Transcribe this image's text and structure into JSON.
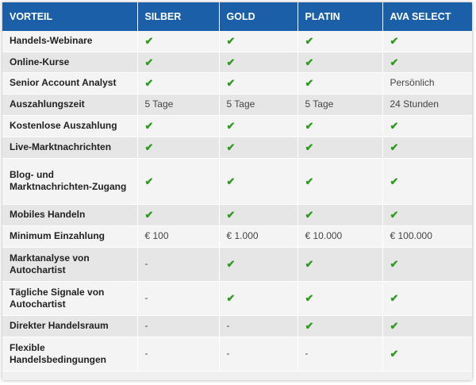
{
  "table": {
    "headers": [
      "VORTEIL",
      "SILBER",
      "GOLD",
      "PLATIN",
      "AVA SELECT"
    ],
    "rows": [
      {
        "label": "Handels-Webinare",
        "cells": [
          "✔",
          "✔",
          "✔",
          "✔"
        ]
      },
      {
        "label": "Online-Kurse",
        "cells": [
          "✔",
          "✔",
          "✔",
          "✔"
        ]
      },
      {
        "label": "Senior Account Analyst",
        "cells": [
          "✔",
          "✔",
          "✔",
          "Persönlich"
        ]
      },
      {
        "label": "Auszahlungszeit",
        "cells": [
          "5 Tage",
          "5 Tage",
          "5 Tage",
          "24 Stunden"
        ]
      },
      {
        "label": "Kostenlose Auszahlung",
        "cells": [
          "✔",
          "✔",
          "✔",
          "✔"
        ]
      },
      {
        "label": "Live-Marktnachrichten",
        "cells": [
          "✔",
          "✔",
          "✔",
          "✔"
        ]
      },
      {
        "label": "Blog- und Marktnachrichten-Zugang",
        "cells": [
          "✔",
          "✔",
          "✔",
          "✔"
        ]
      },
      {
        "label": "Mobiles Handeln",
        "cells": [
          "✔",
          "✔",
          "✔",
          "✔"
        ]
      },
      {
        "label": "Minimum Einzahlung",
        "cells": [
          "€ 100",
          "€ 1.000",
          "€ 10.000",
          "€ 100.000"
        ]
      },
      {
        "label": "Marktanalyse von Autochartist",
        "cells": [
          "-",
          "✔",
          "✔",
          "✔"
        ]
      },
      {
        "label": "Tägliche Signale von Autochartist",
        "cells": [
          "-",
          "✔",
          "✔",
          "✔"
        ]
      },
      {
        "label": "Direkter Handelsraum",
        "cells": [
          "-",
          "-",
          "✔",
          "✔"
        ]
      },
      {
        "label": "Flexible Handelsbedingungen",
        "cells": [
          "-",
          "-",
          "-",
          "✔"
        ]
      }
    ]
  },
  "colors": {
    "header_bg": "#1b5fa8",
    "check": "#2e9a1f"
  }
}
